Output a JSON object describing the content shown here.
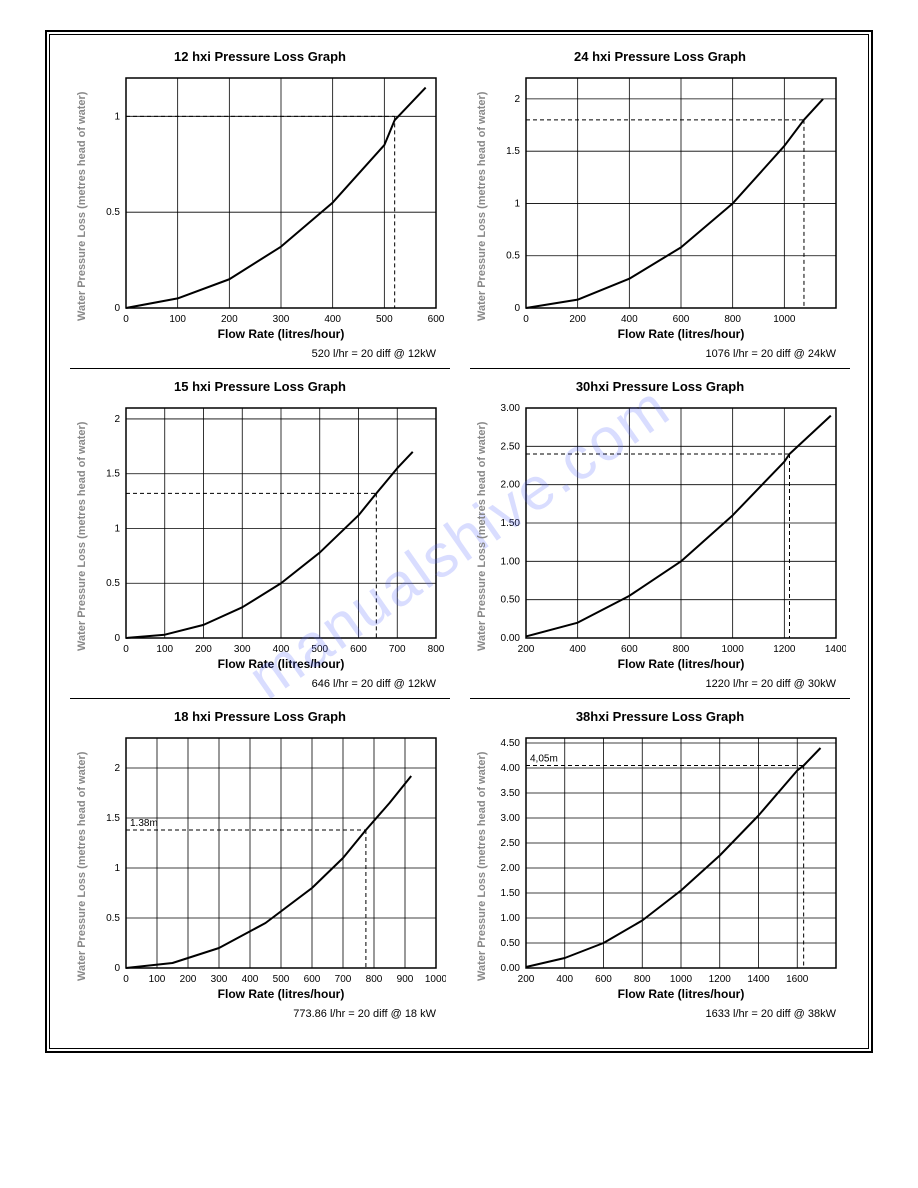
{
  "page": {
    "background": "#ffffff",
    "frame_color": "#000000",
    "watermark_text": "manualshive.com",
    "watermark_color": "rgba(80,100,255,0.22)"
  },
  "common": {
    "xlabel": "Flow Rate (litres/hour)",
    "ylabel": "Water Pressure Loss (metres head of water)",
    "axis_color": "#000000",
    "grid_color": "#000000",
    "curve_color": "#000000",
    "curve_width": 2,
    "tick_font_size": 10,
    "label_font_size": 12,
    "ylabel_color": "#888888"
  },
  "charts": [
    {
      "id": "c12",
      "col": "left",
      "title": "12 hxi Pressure Loss Graph",
      "xlim": [
        0,
        600
      ],
      "xticks": [
        0,
        100,
        200,
        300,
        400,
        500,
        600
      ],
      "ylim": [
        0,
        1.2
      ],
      "yticks": [
        0,
        0.5,
        1
      ],
      "ytick_labels": [
        "0",
        "0.5",
        "1"
      ],
      "curve": [
        [
          0,
          0
        ],
        [
          100,
          0.05
        ],
        [
          200,
          0.15
        ],
        [
          300,
          0.32
        ],
        [
          400,
          0.55
        ],
        [
          500,
          0.85
        ],
        [
          520,
          0.98
        ],
        [
          580,
          1.15
        ]
      ],
      "ref_x": 520,
      "ref_y": 1.0,
      "ref_label": null,
      "caption": "520 l/hr = 20 diff @ 12kW"
    },
    {
      "id": "c24",
      "col": "right",
      "title": "24 hxi Pressure Loss Graph",
      "xlim": [
        0,
        1200
      ],
      "xticks": [
        0,
        200,
        400,
        600,
        800,
        1000
      ],
      "ylim": [
        0,
        2.2
      ],
      "yticks": [
        0,
        0.5,
        1,
        1.5,
        2
      ],
      "ytick_labels": [
        "0",
        "0.5",
        "1",
        "1.5",
        "2"
      ],
      "curve": [
        [
          0,
          0
        ],
        [
          200,
          0.08
        ],
        [
          400,
          0.28
        ],
        [
          600,
          0.58
        ],
        [
          800,
          1.0
        ],
        [
          1000,
          1.55
        ],
        [
          1076,
          1.8
        ],
        [
          1150,
          2.0
        ]
      ],
      "ref_x": 1076,
      "ref_y": 1.8,
      "ref_label": null,
      "caption": "1076 l/hr = 20 diff @ 24kW"
    },
    {
      "id": "c15",
      "col": "left",
      "title": "15 hxi Pressure Loss Graph",
      "xlim": [
        0,
        800
      ],
      "xticks": [
        0,
        100,
        200,
        300,
        400,
        500,
        600,
        700,
        800
      ],
      "ylim": [
        0,
        2.1
      ],
      "yticks": [
        0,
        0.5,
        1,
        1.5,
        2
      ],
      "ytick_labels": [
        "0",
        "0.5",
        "1",
        "1.5",
        "2"
      ],
      "curve": [
        [
          0,
          0
        ],
        [
          100,
          0.03
        ],
        [
          200,
          0.12
        ],
        [
          300,
          0.28
        ],
        [
          400,
          0.5
        ],
        [
          500,
          0.78
        ],
        [
          600,
          1.12
        ],
        [
          646,
          1.32
        ],
        [
          700,
          1.55
        ],
        [
          740,
          1.7
        ]
      ],
      "ref_x": 646,
      "ref_y": 1.32,
      "ref_label": null,
      "caption": "646 l/hr = 20 diff @ 12kW"
    },
    {
      "id": "c30",
      "col": "right",
      "title": "30hxi Pressure Loss Graph",
      "xlim": [
        200,
        1400
      ],
      "xticks": [
        200,
        400,
        600,
        800,
        1000,
        1200,
        1400
      ],
      "ylim": [
        0,
        3.0
      ],
      "yticks": [
        0,
        0.5,
        1.0,
        1.5,
        2.0,
        2.5,
        3.0
      ],
      "ytick_labels": [
        "0.00",
        "0.50",
        "1.00",
        "1.50",
        "2.00",
        "2.50",
        "3.00"
      ],
      "curve": [
        [
          200,
          0.02
        ],
        [
          400,
          0.2
        ],
        [
          600,
          0.55
        ],
        [
          800,
          1.0
        ],
        [
          1000,
          1.6
        ],
        [
          1200,
          2.3
        ],
        [
          1220,
          2.4
        ],
        [
          1380,
          2.9
        ]
      ],
      "ref_x": 1220,
      "ref_y": 2.4,
      "ref_label": null,
      "caption": "1220 l/hr = 20 diff @ 30kW"
    },
    {
      "id": "c18",
      "col": "left",
      "title": "18 hxi Pressure Loss Graph",
      "xlim": [
        0,
        1000
      ],
      "xticks": [
        0,
        100,
        200,
        300,
        400,
        500,
        600,
        700,
        800,
        900,
        1000
      ],
      "ylim": [
        0,
        2.3
      ],
      "yticks": [
        0,
        0.5,
        1,
        1.5,
        2
      ],
      "ytick_labels": [
        "0",
        "0.5",
        "1",
        "1.5",
        "2"
      ],
      "curve": [
        [
          0,
          0
        ],
        [
          150,
          0.05
        ],
        [
          300,
          0.2
        ],
        [
          450,
          0.45
        ],
        [
          600,
          0.8
        ],
        [
          700,
          1.1
        ],
        [
          773.86,
          1.38
        ],
        [
          850,
          1.65
        ],
        [
          920,
          1.92
        ]
      ],
      "ref_x": 773.86,
      "ref_y": 1.38,
      "ref_label": "1.38m",
      "caption": "773.86 l/hr = 20 diff @ 18 kW"
    },
    {
      "id": "c38",
      "col": "right",
      "title": "38hxi Pressure Loss Graph",
      "xlim": [
        200,
        1800
      ],
      "xticks": [
        200,
        400,
        600,
        800,
        1000,
        1200,
        1400,
        1600
      ],
      "ylim": [
        0,
        4.6
      ],
      "yticks": [
        0,
        0.5,
        1.0,
        1.5,
        2.0,
        2.5,
        3.0,
        3.5,
        4.0,
        4.5
      ],
      "ytick_labels": [
        "0.00",
        "0.50",
        "1.00",
        "1.50",
        "2.00",
        "2.50",
        "3.00",
        "3.50",
        "4.00",
        "4.50"
      ],
      "curve": [
        [
          200,
          0.02
        ],
        [
          400,
          0.2
        ],
        [
          600,
          0.5
        ],
        [
          800,
          0.95
        ],
        [
          1000,
          1.55
        ],
        [
          1200,
          2.25
        ],
        [
          1400,
          3.05
        ],
        [
          1600,
          3.95
        ],
        [
          1633,
          4.05
        ],
        [
          1720,
          4.4
        ]
      ],
      "ref_x": 1633,
      "ref_y": 4.05,
      "ref_label": "4,05m",
      "caption": "1633 l/hr = 20 diff @ 38kW"
    }
  ]
}
